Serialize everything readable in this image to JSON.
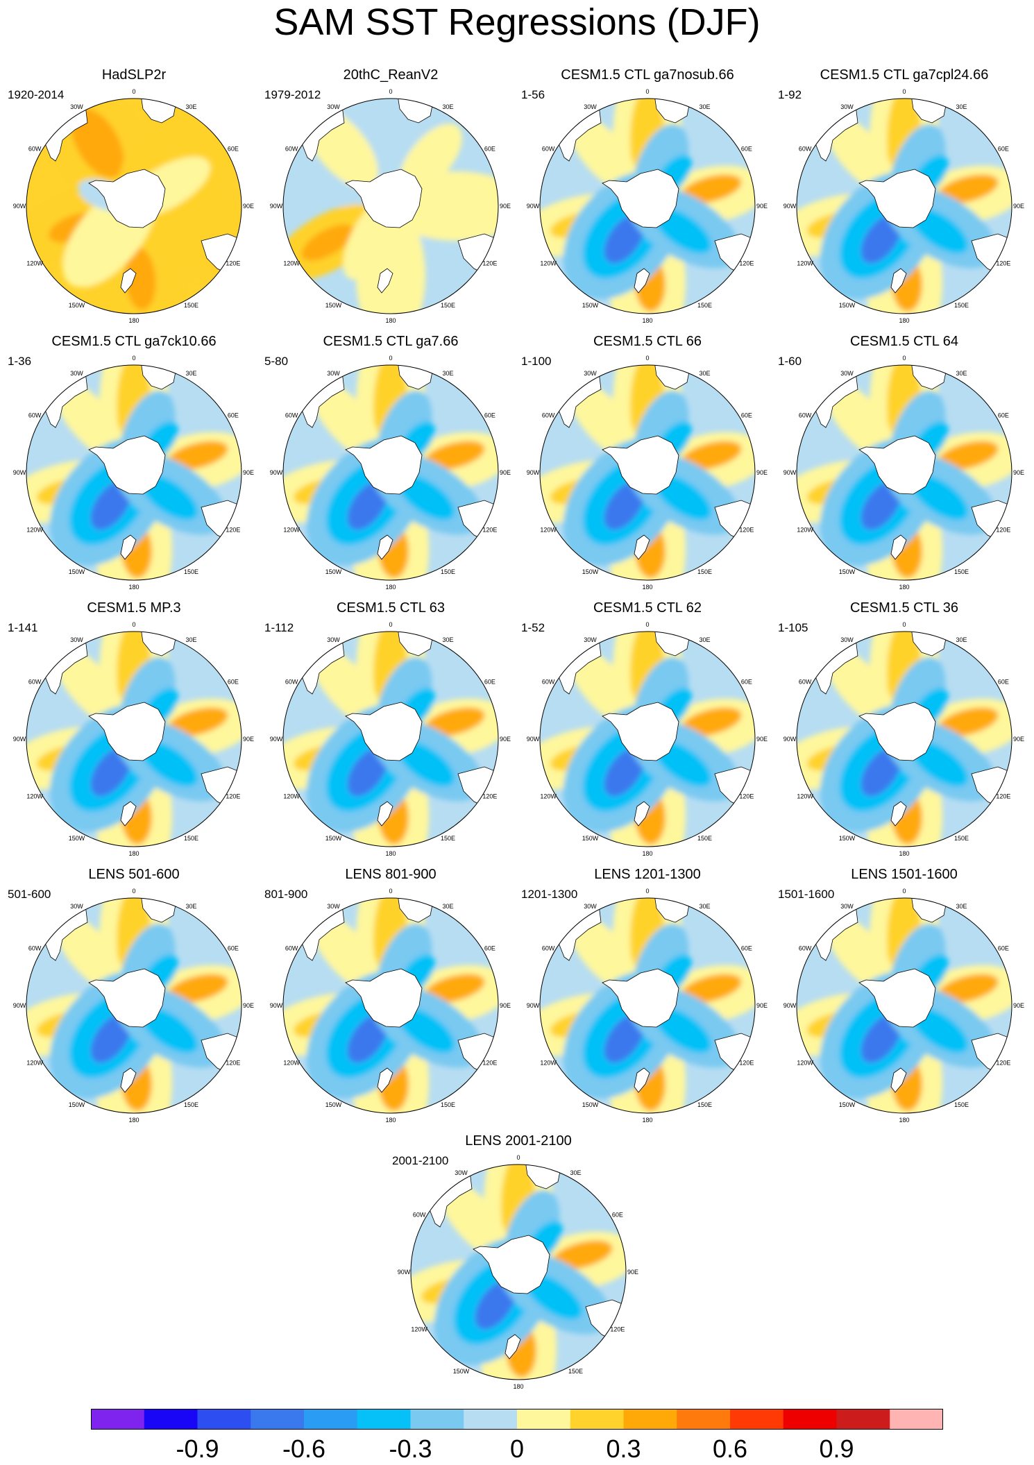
{
  "title": "SAM SST Regressions (DJF)",
  "colors": {
    "land": "#ffffff",
    "outline": "#000000",
    "ocean_default": "#b7ddf2"
  },
  "colorbar": {
    "colors": [
      "#7f24ee",
      "#1a06f7",
      "#2d4ff2",
      "#3a78ee",
      "#2a9cf3",
      "#06c1f7",
      "#79c9f1",
      "#b7ddf2",
      "#fff79c",
      "#ffd22c",
      "#ffa909",
      "#ff7a0d",
      "#ff3a04",
      "#ee0000",
      "#cd1c1c",
      "#ffb4b4"
    ],
    "ticks": [
      "-0.9",
      "-0.6",
      "-0.3",
      "0",
      "0.3",
      "0.6",
      "0.9"
    ]
  },
  "coordinate_labels": [
    "0",
    "30E",
    "60E",
    "90E",
    "120E",
    "150E",
    "180",
    "150W",
    "120W",
    "90W",
    "60W",
    "30W"
  ],
  "panels": [
    {
      "title": "HadSLP2r",
      "years": "1920-2014",
      "style": "obs1"
    },
    {
      "title": "20thC_ReanV2",
      "years": "1979-2012",
      "style": "obs2"
    },
    {
      "title": "CESM1.5 CTL ga7nosub.66",
      "years": "1-56",
      "style": "model"
    },
    {
      "title": "CESM1.5 CTL ga7cpl24.66",
      "years": "1-92",
      "style": "model"
    },
    {
      "title": "CESM1.5 CTL ga7ck10.66",
      "years": "1-36",
      "style": "model"
    },
    {
      "title": "CESM1.5 CTL ga7.66",
      "years": "5-80",
      "style": "model"
    },
    {
      "title": "CESM1.5 CTL 66",
      "years": "1-100",
      "style": "model"
    },
    {
      "title": "CESM1.5 CTL 64",
      "years": "1-60",
      "style": "model"
    },
    {
      "title": "CESM1.5 MP.3",
      "years": "1-141",
      "style": "model"
    },
    {
      "title": "CESM1.5 CTL 63",
      "years": "1-112",
      "style": "model"
    },
    {
      "title": "CESM1.5 CTL 62",
      "years": "1-52",
      "style": "model"
    },
    {
      "title": "CESM1.5 CTL 36",
      "years": "1-105",
      "style": "model"
    },
    {
      "title": "LENS 501-600",
      "years": "501-600",
      "style": "model"
    },
    {
      "title": "LENS 801-900",
      "years": "801-900",
      "style": "model"
    },
    {
      "title": "LENS 1201-1300",
      "years": "1201-1300",
      "style": "model"
    },
    {
      "title": "LENS 1501-1600",
      "years": "1501-1600",
      "style": "model"
    },
    {
      "title": "LENS 2001-2100",
      "years": "2001-2100",
      "style": "model"
    }
  ]
}
